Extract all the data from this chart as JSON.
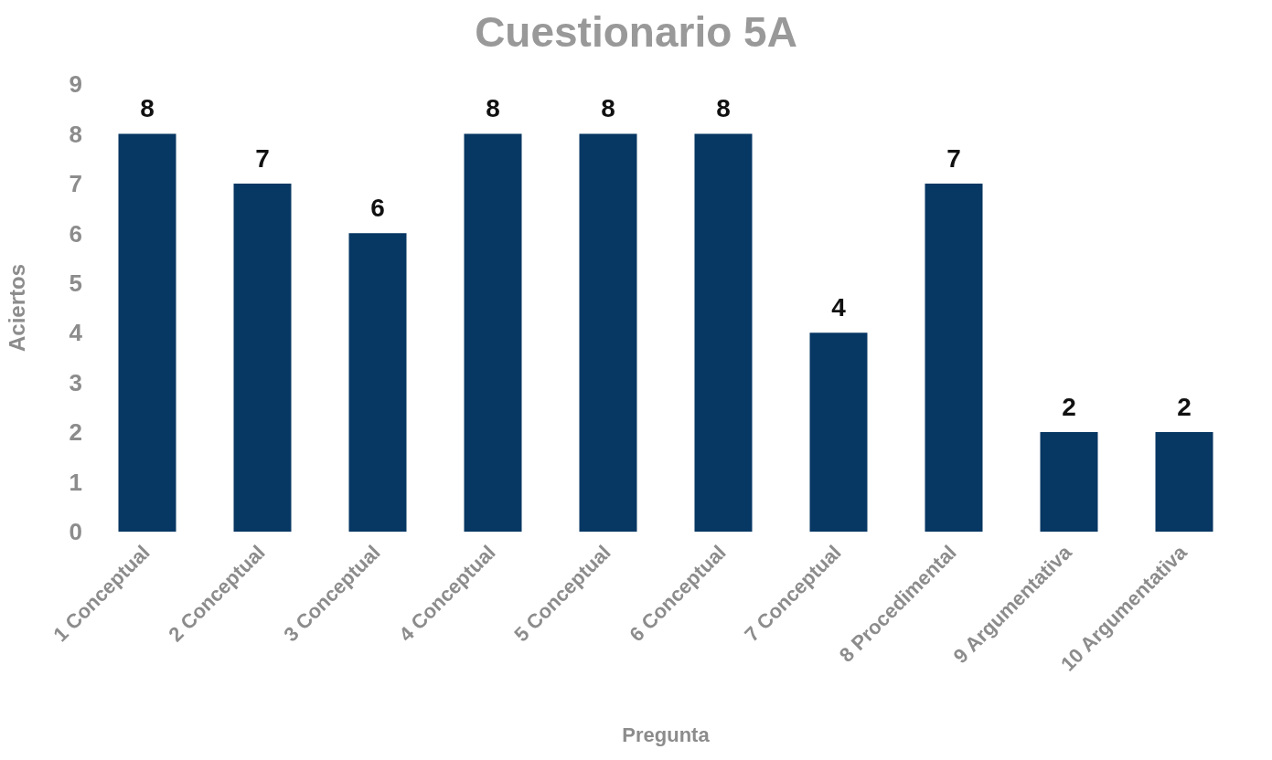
{
  "chart_data": {
    "type": "bar",
    "title": "Cuestionario 5A",
    "xlabel": "Pregunta",
    "ylabel": "Aciertos",
    "categories": [
      "1 Conceptual",
      "2 Conceptual",
      "3 Conceptual",
      "4 Conceptual",
      "5 Conceptual",
      "6 Conceptual",
      "7 Conceptual",
      "8 Procedimental",
      "9 Argumentativa",
      "10 Argumentativa"
    ],
    "values": [
      8,
      7,
      6,
      8,
      8,
      8,
      4,
      7,
      2,
      2
    ],
    "color": "#073763",
    "ylim": [
      0,
      9
    ],
    "yticks": [
      0,
      1,
      2,
      3,
      4,
      5,
      6,
      7,
      8,
      9
    ],
    "grid": false,
    "data_labels": true
  }
}
